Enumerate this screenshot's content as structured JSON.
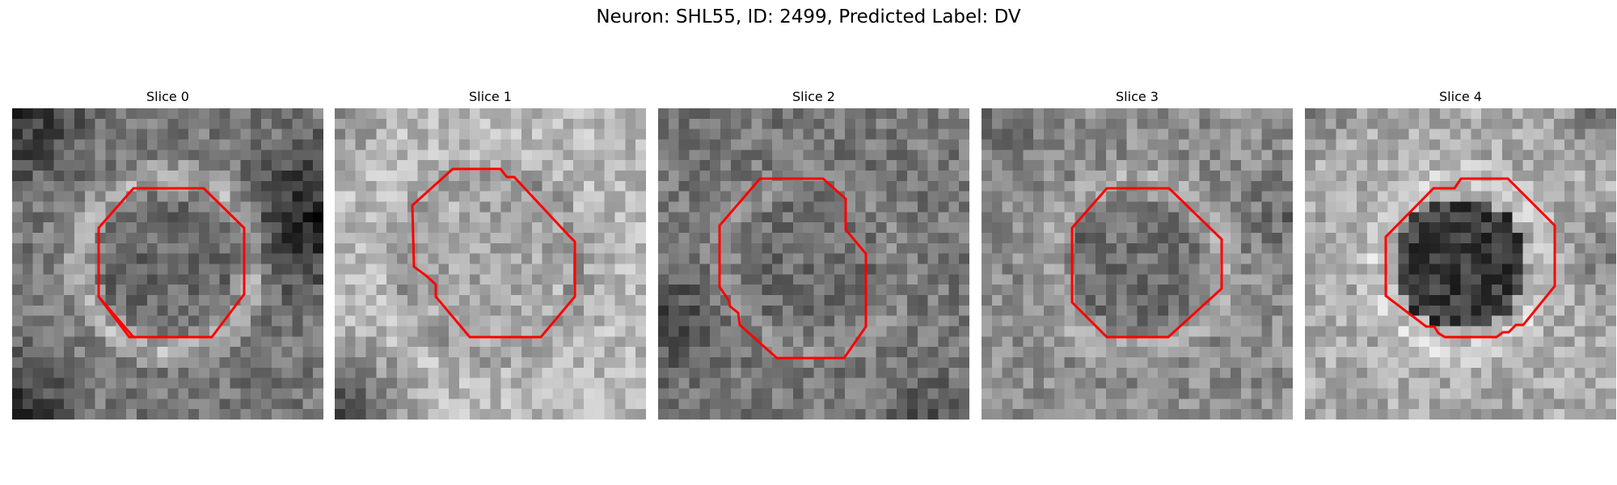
{
  "figure": {
    "title": "Neuron: SHL55, ID: 2499, Predicted Label: DV",
    "roi_color": "#ff0000"
  },
  "panels": [
    {
      "title": "Slice 0"
    },
    {
      "title": "Slice 1"
    },
    {
      "title": "Slice 2"
    },
    {
      "title": "Slice 3"
    },
    {
      "title": "Slice 4"
    }
  ]
}
